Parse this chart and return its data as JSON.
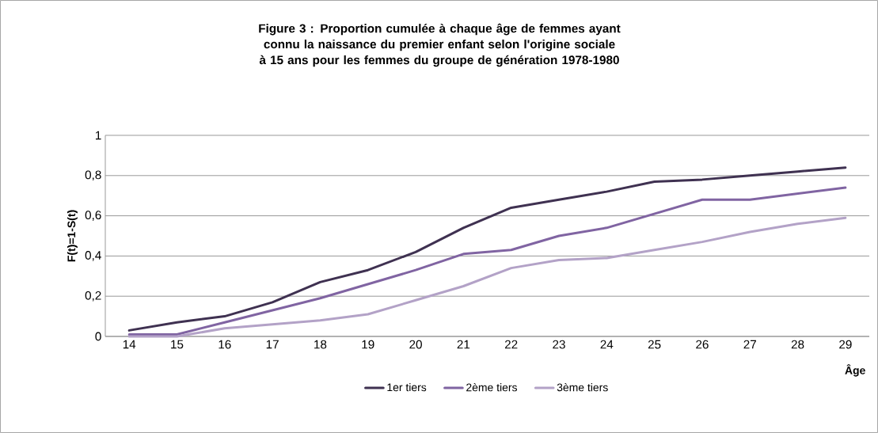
{
  "chart_data": {
    "type": "line",
    "title": "Figure 3 : Proportion cumulée à chaque âge de femmes ayant connu la naissance du premier enfant selon l'origine sociale à 15 ans pour les femmes du groupe de génération 1978-1980",
    "xlabel": "Âge",
    "ylabel": "F(t)=1-S(t)",
    "categories": [
      "14",
      "15",
      "16",
      "17",
      "18",
      "19",
      "20",
      "21",
      "22",
      "23",
      "24",
      "25",
      "26",
      "27",
      "28",
      "29"
    ],
    "series": [
      {
        "name": "1er tiers",
        "color": "#3f3151",
        "values": [
          0.03,
          0.07,
          0.1,
          0.17,
          0.27,
          0.33,
          0.42,
          0.54,
          0.64,
          0.68,
          0.72,
          0.77,
          0.78,
          0.8,
          0.82,
          0.84
        ]
      },
      {
        "name": "2ème tiers",
        "color": "#8064a2",
        "values": [
          0.01,
          0.01,
          0.07,
          0.13,
          0.19,
          0.26,
          0.33,
          0.41,
          0.43,
          0.5,
          0.54,
          0.61,
          0.68,
          0.68,
          0.71,
          0.74
        ]
      },
      {
        "name": "3ème tiers",
        "color": "#b3a2c7",
        "values": [
          0,
          0,
          0.04,
          0.06,
          0.08,
          0.11,
          0.18,
          0.25,
          0.34,
          0.38,
          0.39,
          0.43,
          0.47,
          0.52,
          0.56,
          0.59
        ]
      }
    ],
    "ylim": [
      0,
      1
    ],
    "yticks": [
      0,
      {
        "value": 0.2,
        "label": "0,2"
      },
      {
        "value": 0.4,
        "label": "0,4"
      },
      {
        "value": 0.6,
        "label": "0,6"
      },
      {
        "value": 0.8,
        "label": "0,8"
      },
      1
    ],
    "grid": "y",
    "legend": "bottom",
    "marker": "none",
    "line_style": "solid"
  }
}
